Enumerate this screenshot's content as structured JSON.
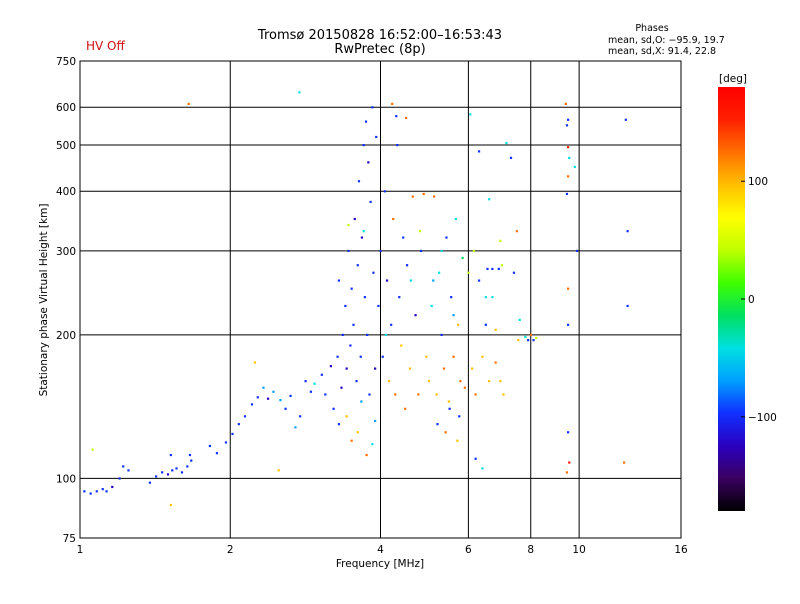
{
  "header": {
    "status": "HV Off",
    "title_line1": "Tromsø 20150828 16:52:00–16:53:43",
    "title_line2": "RwPretec (8p)",
    "phase_title": "Phases",
    "phase_line1": "mean, sd,O: −95.9, 19.7",
    "phase_line2": "mean, sd,X:  91.4, 22.8"
  },
  "colors": {
    "status": "#d01010",
    "grid": "#000000",
    "colormap": [
      "#000000",
      "#3a0060",
      "#2a00c0",
      "#1030ff",
      "#00a0ff",
      "#00e0e0",
      "#00e060",
      "#40ff00",
      "#c0ff00",
      "#ffff00",
      "#ffc000",
      "#ff7000",
      "#ff2000",
      "#ff0000"
    ]
  },
  "chart_data": {
    "type": "scatter",
    "xlabel": "Frequency [MHz]",
    "ylabel": "Stationary phase Virtual Height [km]",
    "xscale": "log",
    "yscale": "log",
    "xlim": [
      1,
      16
    ],
    "ylim": [
      75,
      750
    ],
    "xticks": [
      1,
      2,
      4,
      6,
      8,
      10,
      16
    ],
    "xtick_labels": [
      "1",
      "2",
      "4",
      "6",
      "8",
      "10",
      "16"
    ],
    "yticks": [
      75,
      100,
      200,
      300,
      400,
      500,
      600,
      750
    ],
    "ytick_labels": [
      "75",
      "100",
      "200",
      "300",
      "400",
      "500",
      "600",
      "750"
    ],
    "grid": true,
    "colorbar": {
      "label": "[deg]",
      "range": [
        -180,
        180
      ],
      "ticks": [
        100,
        0,
        -100
      ],
      "tick_labels": [
        "100",
        "0",
        "−100"
      ]
    },
    "series": [
      {
        "points": [
          {
            "x": 1.02,
            "y": 94,
            "c": -110
          },
          {
            "x": 1.05,
            "y": 93,
            "c": -105
          },
          {
            "x": 1.08,
            "y": 94,
            "c": -110
          },
          {
            "x": 1.11,
            "y": 95,
            "c": -100
          },
          {
            "x": 1.13,
            "y": 94,
            "c": -108
          },
          {
            "x": 1.16,
            "y": 96,
            "c": -112
          },
          {
            "x": 1.2,
            "y": 100,
            "c": -105
          },
          {
            "x": 1.22,
            "y": 106,
            "c": -110
          },
          {
            "x": 1.25,
            "y": 104,
            "c": -100
          },
          {
            "x": 1.38,
            "y": 98,
            "c": -105
          },
          {
            "x": 1.42,
            "y": 101,
            "c": -110
          },
          {
            "x": 1.46,
            "y": 103,
            "c": -108
          },
          {
            "x": 1.5,
            "y": 102,
            "c": -112
          },
          {
            "x": 1.53,
            "y": 104,
            "c": -100
          },
          {
            "x": 1.56,
            "y": 105,
            "c": -105
          },
          {
            "x": 1.6,
            "y": 103,
            "c": -110
          },
          {
            "x": 1.64,
            "y": 106,
            "c": -100
          },
          {
            "x": 1.67,
            "y": 109,
            "c": -108
          },
          {
            "x": 1.52,
            "y": 112,
            "c": -105
          },
          {
            "x": 1.66,
            "y": 112,
            "c": -110
          },
          {
            "x": 1.06,
            "y": 115,
            "c": 40
          },
          {
            "x": 1.52,
            "y": 88,
            "c": 100
          },
          {
            "x": 1.65,
            "y": 610,
            "c": 130
          },
          {
            "x": 1.82,
            "y": 117,
            "c": -105
          },
          {
            "x": 1.88,
            "y": 113,
            "c": -110
          },
          {
            "x": 1.96,
            "y": 119,
            "c": -100
          },
          {
            "x": 2.02,
            "y": 124,
            "c": -108
          },
          {
            "x": 2.08,
            "y": 130,
            "c": -105
          },
          {
            "x": 2.14,
            "y": 135,
            "c": -110
          },
          {
            "x": 2.21,
            "y": 143,
            "c": -105
          },
          {
            "x": 2.27,
            "y": 148,
            "c": -100
          },
          {
            "x": 2.33,
            "y": 155,
            "c": -80
          },
          {
            "x": 2.38,
            "y": 147,
            "c": -112
          },
          {
            "x": 2.44,
            "y": 152,
            "c": -60
          },
          {
            "x": 2.52,
            "y": 146,
            "c": -70
          },
          {
            "x": 2.58,
            "y": 140,
            "c": -100
          },
          {
            "x": 2.64,
            "y": 149,
            "c": -105
          },
          {
            "x": 2.7,
            "y": 128,
            "c": -60
          },
          {
            "x": 2.76,
            "y": 135,
            "c": -110
          },
          {
            "x": 2.83,
            "y": 160,
            "c": -100
          },
          {
            "x": 2.9,
            "y": 152,
            "c": -105
          },
          {
            "x": 2.95,
            "y": 158,
            "c": -40
          },
          {
            "x": 2.24,
            "y": 175,
            "c": 100
          },
          {
            "x": 2.5,
            "y": 104,
            "c": 110
          },
          {
            "x": 2.75,
            "y": 645,
            "c": -30
          },
          {
            "x": 3.05,
            "y": 165,
            "c": -110
          },
          {
            "x": 3.1,
            "y": 150,
            "c": -105
          },
          {
            "x": 3.18,
            "y": 172,
            "c": -112
          },
          {
            "x": 3.22,
            "y": 140,
            "c": -100
          },
          {
            "x": 3.28,
            "y": 180,
            "c": -108
          },
          {
            "x": 3.3,
            "y": 260,
            "c": -110
          },
          {
            "x": 3.34,
            "y": 155,
            "c": -115
          },
          {
            "x": 3.36,
            "y": 200,
            "c": -105
          },
          {
            "x": 3.4,
            "y": 230,
            "c": -100
          },
          {
            "x": 3.42,
            "y": 170,
            "c": -112
          },
          {
            "x": 3.45,
            "y": 300,
            "c": -108
          },
          {
            "x": 3.48,
            "y": 190,
            "c": -110
          },
          {
            "x": 3.5,
            "y": 250,
            "c": -105
          },
          {
            "x": 3.53,
            "y": 210,
            "c": -100
          },
          {
            "x": 3.55,
            "y": 350,
            "c": -112
          },
          {
            "x": 3.58,
            "y": 160,
            "c": -110
          },
          {
            "x": 3.6,
            "y": 280,
            "c": -108
          },
          {
            "x": 3.62,
            "y": 420,
            "c": -105
          },
          {
            "x": 3.65,
            "y": 180,
            "c": -100
          },
          {
            "x": 3.67,
            "y": 320,
            "c": -112
          },
          {
            "x": 3.7,
            "y": 500,
            "c": -110
          },
          {
            "x": 3.72,
            "y": 240,
            "c": -108
          },
          {
            "x": 3.74,
            "y": 560,
            "c": -105
          },
          {
            "x": 3.76,
            "y": 200,
            "c": -110
          },
          {
            "x": 3.78,
            "y": 460,
            "c": -112
          },
          {
            "x": 3.8,
            "y": 150,
            "c": -100
          },
          {
            "x": 3.82,
            "y": 380,
            "c": -105
          },
          {
            "x": 3.85,
            "y": 600,
            "c": -108
          },
          {
            "x": 3.87,
            "y": 270,
            "c": -110
          },
          {
            "x": 3.9,
            "y": 170,
            "c": -112
          },
          {
            "x": 3.5,
            "y": 120,
            "c": 120
          },
          {
            "x": 3.6,
            "y": 125,
            "c": 110
          },
          {
            "x": 3.75,
            "y": 112,
            "c": 130
          },
          {
            "x": 3.85,
            "y": 118,
            "c": -40
          },
          {
            "x": 3.42,
            "y": 135,
            "c": 100
          },
          {
            "x": 3.66,
            "y": 145,
            "c": -80
          },
          {
            "x": 3.9,
            "y": 132,
            "c": -60
          },
          {
            "x": 3.3,
            "y": 130,
            "c": -105
          },
          {
            "x": 3.45,
            "y": 340,
            "c": 40
          },
          {
            "x": 3.7,
            "y": 330,
            "c": -30
          },
          {
            "x": 3.92,
            "y": 520,
            "c": -110
          },
          {
            "x": 3.96,
            "y": 230,
            "c": -105
          },
          {
            "x": 4.0,
            "y": 300,
            "c": -100
          },
          {
            "x": 4.04,
            "y": 180,
            "c": -108
          },
          {
            "x": 4.08,
            "y": 400,
            "c": -110
          },
          {
            "x": 4.12,
            "y": 260,
            "c": -112
          },
          {
            "x": 4.16,
            "y": 160,
            "c": 110
          },
          {
            "x": 4.2,
            "y": 210,
            "c": -105
          },
          {
            "x": 4.24,
            "y": 350,
            "c": 120
          },
          {
            "x": 4.28,
            "y": 150,
            "c": 130
          },
          {
            "x": 4.32,
            "y": 500,
            "c": -108
          },
          {
            "x": 4.36,
            "y": 240,
            "c": -100
          },
          {
            "x": 4.4,
            "y": 190,
            "c": 100
          },
          {
            "x": 4.44,
            "y": 320,
            "c": -110
          },
          {
            "x": 4.48,
            "y": 140,
            "c": 120
          },
          {
            "x": 4.52,
            "y": 280,
            "c": -105
          },
          {
            "x": 4.58,
            "y": 170,
            "c": 110
          },
          {
            "x": 4.64,
            "y": 390,
            "c": 120
          },
          {
            "x": 4.7,
            "y": 220,
            "c": -112
          },
          {
            "x": 4.76,
            "y": 150,
            "c": 130
          },
          {
            "x": 4.82,
            "y": 300,
            "c": -100
          },
          {
            "x": 4.88,
            "y": 395,
            "c": 115
          },
          {
            "x": 4.94,
            "y": 180,
            "c": 100
          },
          {
            "x": 4.22,
            "y": 610,
            "c": 120
          },
          {
            "x": 4.3,
            "y": 575,
            "c": -105
          },
          {
            "x": 4.5,
            "y": 570,
            "c": 125
          },
          {
            "x": 4.1,
            "y": 200,
            "c": -30
          },
          {
            "x": 4.6,
            "y": 260,
            "c": -40
          },
          {
            "x": 4.8,
            "y": 330,
            "c": 30
          },
          {
            "x": 5.0,
            "y": 160,
            "c": 110
          },
          {
            "x": 5.06,
            "y": 230,
            "c": -30
          },
          {
            "x": 5.12,
            "y": 390,
            "c": 120
          },
          {
            "x": 5.18,
            "y": 150,
            "c": 100
          },
          {
            "x": 5.24,
            "y": 270,
            "c": -40
          },
          {
            "x": 5.3,
            "y": 200,
            "c": -105
          },
          {
            "x": 5.36,
            "y": 170,
            "c": 130
          },
          {
            "x": 5.42,
            "y": 320,
            "c": -100
          },
          {
            "x": 5.48,
            "y": 145,
            "c": 110
          },
          {
            "x": 5.54,
            "y": 240,
            "c": -108
          },
          {
            "x": 5.6,
            "y": 180,
            "c": 120
          },
          {
            "x": 5.66,
            "y": 350,
            "c": -30
          },
          {
            "x": 5.72,
            "y": 210,
            "c": 100
          },
          {
            "x": 5.78,
            "y": 160,
            "c": 115
          },
          {
            "x": 5.84,
            "y": 290,
            "c": -20
          },
          {
            "x": 5.9,
            "y": 155,
            "c": 120
          },
          {
            "x": 5.1,
            "y": 260,
            "c": -60
          },
          {
            "x": 5.3,
            "y": 300,
            "c": -50
          },
          {
            "x": 5.6,
            "y": 220,
            "c": -70
          },
          {
            "x": 5.2,
            "y": 130,
            "c": -105
          },
          {
            "x": 5.5,
            "y": 140,
            "c": -108
          },
          {
            "x": 5.75,
            "y": 135,
            "c": -110
          },
          {
            "x": 5.4,
            "y": 125,
            "c": 130
          },
          {
            "x": 5.7,
            "y": 120,
            "c": 110
          },
          {
            "x": 6.0,
            "y": 270,
            "c": 40
          },
          {
            "x": 6.05,
            "y": 580,
            "c": -30
          },
          {
            "x": 6.1,
            "y": 170,
            "c": 110
          },
          {
            "x": 6.15,
            "y": 300,
            "c": 30
          },
          {
            "x": 6.2,
            "y": 150,
            "c": 120
          },
          {
            "x": 6.3,
            "y": 260,
            "c": -108
          },
          {
            "x": 6.4,
            "y": 180,
            "c": 100
          },
          {
            "x": 6.5,
            "y": 240,
            "c": -30
          },
          {
            "x": 6.55,
            "y": 275,
            "c": -110
          },
          {
            "x": 6.6,
            "y": 160,
            "c": 110
          },
          {
            "x": 6.7,
            "y": 275,
            "c": -105
          },
          {
            "x": 6.8,
            "y": 175,
            "c": 120
          },
          {
            "x": 6.9,
            "y": 275,
            "c": -100
          },
          {
            "x": 6.95,
            "y": 160,
            "c": 100
          },
          {
            "x": 7.0,
            "y": 280,
            "c": 40
          },
          {
            "x": 7.05,
            "y": 150,
            "c": 110
          },
          {
            "x": 6.2,
            "y": 110,
            "c": -100
          },
          {
            "x": 6.4,
            "y": 105,
            "c": -30
          },
          {
            "x": 6.3,
            "y": 485,
            "c": -105
          },
          {
            "x": 6.6,
            "y": 385,
            "c": -30
          },
          {
            "x": 6.7,
            "y": 240,
            "c": -30
          },
          {
            "x": 6.5,
            "y": 210,
            "c": -108
          },
          {
            "x": 6.8,
            "y": 205,
            "c": 110
          },
          {
            "x": 6.95,
            "y": 315,
            "c": 30
          },
          {
            "x": 7.15,
            "y": 505,
            "c": -30
          },
          {
            "x": 7.3,
            "y": 470,
            "c": -105
          },
          {
            "x": 7.4,
            "y": 270,
            "c": -110
          },
          {
            "x": 7.5,
            "y": 330,
            "c": 120
          },
          {
            "x": 7.55,
            "y": 195,
            "c": 110
          },
          {
            "x": 7.8,
            "y": 198,
            "c": -30
          },
          {
            "x": 7.9,
            "y": 195,
            "c": -105
          },
          {
            "x": 8.0,
            "y": 200,
            "c": 120
          },
          {
            "x": 8.1,
            "y": 195,
            "c": -100
          },
          {
            "x": 8.2,
            "y": 197,
            "c": 40
          },
          {
            "x": 7.6,
            "y": 215,
            "c": -30
          },
          {
            "x": 9.4,
            "y": 610,
            "c": 130
          },
          {
            "x": 9.5,
            "y": 565,
            "c": -105
          },
          {
            "x": 9.45,
            "y": 550,
            "c": -110
          },
          {
            "x": 9.5,
            "y": 495,
            "c": 140
          },
          {
            "x": 9.55,
            "y": 470,
            "c": -30
          },
          {
            "x": 9.5,
            "y": 430,
            "c": 130
          },
          {
            "x": 9.45,
            "y": 395,
            "c": -108
          },
          {
            "x": 9.5,
            "y": 250,
            "c": 120
          },
          {
            "x": 9.5,
            "y": 210,
            "c": -110
          },
          {
            "x": 9.5,
            "y": 125,
            "c": -105
          },
          {
            "x": 9.55,
            "y": 108,
            "c": 140
          },
          {
            "x": 9.45,
            "y": 103,
            "c": 120
          },
          {
            "x": 9.8,
            "y": 450,
            "c": -30
          },
          {
            "x": 9.9,
            "y": 300,
            "c": -108
          },
          {
            "x": 12.4,
            "y": 565,
            "c": -110
          },
          {
            "x": 12.5,
            "y": 330,
            "c": -105
          },
          {
            "x": 12.5,
            "y": 230,
            "c": -100
          },
          {
            "x": 12.3,
            "y": 108,
            "c": 120
          }
        ]
      }
    ]
  }
}
